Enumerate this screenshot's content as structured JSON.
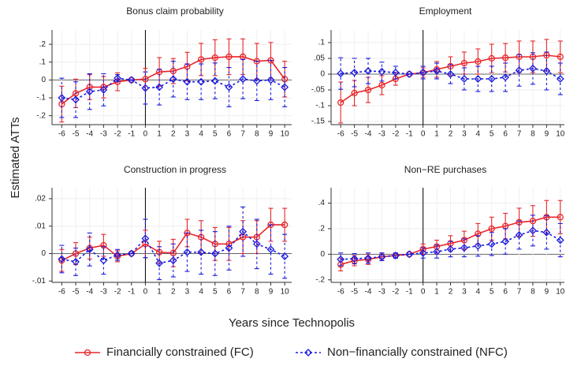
{
  "ylabel": "Estimated ATTs",
  "xlabel": "Years since Technopolis",
  "chart_data": [
    {
      "type": "line",
      "title": "Bonus claim probability",
      "x": [
        -6,
        -5,
        -4,
        -3,
        -2,
        -1,
        0,
        1,
        2,
        3,
        4,
        5,
        6,
        7,
        8,
        9,
        10
      ],
      "xlim": [
        -6.7,
        10.5
      ],
      "xticks": [
        -6,
        -5,
        -4,
        -3,
        -2,
        -1,
        0,
        1,
        2,
        3,
        4,
        5,
        6,
        7,
        8,
        9,
        10
      ],
      "ylim": [
        -0.25,
        0.28
      ],
      "yticks": [
        {
          "value": -0.2,
          "label": "-.2"
        },
        {
          "value": -0.1,
          "label": "-.1"
        },
        0,
        {
          "value": 0.1,
          "label": ".1"
        },
        {
          "value": 0.2,
          "label": ".2"
        }
      ],
      "grid": true,
      "series": [
        {
          "name": "Financially constrained (FC)",
          "color": "#e8262a",
          "marker": "circle",
          "linestyle": "solid",
          "values": [
            -0.135,
            -0.075,
            -0.04,
            -0.04,
            -0.01,
            0,
            0.005,
            0.045,
            0.05,
            0.075,
            0.115,
            0.125,
            0.13,
            0.13,
            0.105,
            0.11,
            0.005
          ],
          "errors": [
            0.1,
            0.08,
            0.07,
            0.06,
            0.05,
            0,
            0.06,
            0.08,
            0.07,
            0.08,
            0.09,
            0.1,
            0.1,
            0.1,
            0.1,
            0.1,
            0.1
          ]
        },
        {
          "name": "Non−financially constrained (NFC)",
          "color": "#1a1ae0",
          "marker": "diamond",
          "linestyle": "dashed",
          "values": [
            -0.1,
            -0.11,
            -0.065,
            -0.055,
            0.01,
            0,
            -0.045,
            -0.04,
            0.005,
            -0.01,
            -0.01,
            -0.005,
            -0.04,
            0.005,
            -0.005,
            0.0,
            -0.04
          ],
          "errors": [
            0.11,
            0.1,
            0.1,
            0.09,
            0.02,
            0,
            0.09,
            0.1,
            0.1,
            0.1,
            0.1,
            0.1,
            0.11,
            0.11,
            0.11,
            0.11,
            0.11
          ]
        }
      ]
    },
    {
      "type": "line",
      "title": "Employment",
      "x": [
        -6,
        -5,
        -4,
        -3,
        -2,
        -1,
        0,
        1,
        2,
        3,
        4,
        5,
        6,
        7,
        8,
        9,
        10
      ],
      "xlim": [
        -6.7,
        10.3
      ],
      "xticks": [
        -6,
        -5,
        -4,
        -3,
        -2,
        -1,
        0,
        1,
        2,
        3,
        4,
        5,
        6,
        7,
        8,
        9,
        10
      ],
      "ylim": [
        -0.16,
        0.14
      ],
      "yticks": [
        {
          "value": -0.15,
          "label": "-.15"
        },
        {
          "value": -0.1,
          "label": "-.1"
        },
        {
          "value": -0.05,
          "label": "-.05"
        },
        0,
        {
          "value": 0.05,
          "label": ".05"
        },
        {
          "value": 0.1,
          "label": ".1"
        }
      ],
      "grid": true,
      "series": [
        {
          "name": "Financially constrained (FC)",
          "color": "#e8262a",
          "marker": "circle",
          "linestyle": "solid",
          "values": [
            -0.09,
            -0.06,
            -0.05,
            -0.035,
            -0.015,
            0,
            0.005,
            0.015,
            0.025,
            0.035,
            0.04,
            0.05,
            0.052,
            0.055,
            0.055,
            0.06,
            0.055
          ],
          "errors": [
            0.065,
            0.04,
            0.04,
            0.03,
            0.02,
            0,
            0.015,
            0.025,
            0.03,
            0.035,
            0.04,
            0.045,
            0.045,
            0.05,
            0.05,
            0.05,
            0.05
          ]
        },
        {
          "name": "Non−financially constrained (NFC)",
          "color": "#1a1ae0",
          "marker": "diamond",
          "linestyle": "dashed",
          "values": [
            0.002,
            0.005,
            0.01,
            0.008,
            0.005,
            0,
            0.005,
            0.01,
            0.0,
            -0.015,
            -0.015,
            -0.015,
            -0.01,
            0.012,
            0.018,
            0.01,
            -0.015
          ],
          "errors": [
            0.05,
            0.045,
            0.04,
            0.03,
            0.02,
            0,
            0.02,
            0.025,
            0.03,
            0.035,
            0.04,
            0.04,
            0.045,
            0.05,
            0.05,
            0.06,
            0.05
          ]
        }
      ]
    },
    {
      "type": "line",
      "title": "Construction in progress",
      "x": [
        -6,
        -5,
        -4,
        -3,
        -2,
        -1,
        0,
        1,
        2,
        3,
        4,
        5,
        6,
        7,
        8,
        9,
        10
      ],
      "xlim": [
        -6.7,
        10.5
      ],
      "xticks": [
        -6,
        -5,
        -4,
        -3,
        -2,
        -1,
        0,
        1,
        2,
        3,
        4,
        5,
        6,
        7,
        8,
        9,
        10
      ],
      "ylim": [
        -0.0105,
        0.024
      ],
      "yticks": [
        {
          "value": -0.01,
          "label": "-.01"
        },
        0,
        {
          "value": 0.01,
          "label": ".01"
        },
        {
          "value": 0.02,
          "label": ".02"
        }
      ],
      "grid": true,
      "series": [
        {
          "name": "Financially constrained (FC)",
          "color": "#e8262a",
          "marker": "circle",
          "linestyle": "solid",
          "values": [
            -0.0025,
            0.0,
            0.002,
            0.003,
            -0.001,
            0,
            0.0035,
            0.0005,
            0.0002,
            0.0075,
            0.006,
            0.0035,
            0.0035,
            0.006,
            0.006,
            0.0105,
            0.0105
          ],
          "errors": [
            0.004,
            0.004,
            0.004,
            0.004,
            0.002,
            0,
            0.005,
            0.004,
            0.005,
            0.005,
            0.006,
            0.006,
            0.006,
            0.006,
            0.006,
            0.006,
            0.006
          ]
        },
        {
          "name": "Non−financially constrained (NFC)",
          "color": "#1a1ae0",
          "marker": "diamond",
          "linestyle": "dashed",
          "values": [
            -0.002,
            -0.003,
            0.0015,
            -0.0025,
            -0.0005,
            0,
            0.0055,
            -0.0035,
            -0.0025,
            0.0005,
            0.0005,
            0.0,
            0.002,
            0.008,
            0.0035,
            0.0015,
            -0.001
          ],
          "errors": [
            0.005,
            0.005,
            0.006,
            0.005,
            0.002,
            0,
            0.007,
            0.006,
            0.006,
            0.007,
            0.008,
            0.008,
            0.008,
            0.009,
            0.009,
            0.009,
            0.008
          ]
        }
      ]
    },
    {
      "type": "line",
      "title": "Non−RE purchases",
      "x": [
        -6,
        -5,
        -4,
        -3,
        -2,
        -1,
        0,
        1,
        2,
        3,
        4,
        5,
        6,
        7,
        8,
        9,
        10
      ],
      "xlim": [
        -6.7,
        10.3
      ],
      "xticks": [
        -6,
        -5,
        -4,
        -3,
        -2,
        -1,
        0,
        1,
        2,
        3,
        4,
        5,
        6,
        7,
        8,
        9,
        10
      ],
      "ylim": [
        -0.22,
        0.52
      ],
      "yticks": [
        {
          "value": -0.2,
          "label": "-.2"
        },
        0,
        {
          "value": 0.2,
          "label": ".2"
        },
        {
          "value": 0.4,
          "label": ".4"
        }
      ],
      "grid": true,
      "series": [
        {
          "name": "Financially constrained (FC)",
          "color": "#e8262a",
          "marker": "circle",
          "linestyle": "solid",
          "values": [
            -0.08,
            -0.05,
            -0.04,
            -0.02,
            -0.01,
            0,
            0.04,
            0.06,
            0.085,
            0.11,
            0.16,
            0.2,
            0.22,
            0.25,
            0.26,
            0.29,
            0.29
          ],
          "errors": [
            0.05,
            0.04,
            0.04,
            0.03,
            0.02,
            0,
            0.04,
            0.05,
            0.06,
            0.07,
            0.08,
            0.09,
            0.1,
            0.11,
            0.12,
            0.13,
            0.13
          ]
        },
        {
          "name": "Non−financially constrained (NFC)",
          "color": "#1a1ae0",
          "marker": "diamond",
          "linestyle": "dashed",
          "values": [
            -0.04,
            -0.035,
            -0.03,
            -0.02,
            -0.01,
            0,
            0.01,
            0.02,
            0.04,
            0.05,
            0.065,
            0.08,
            0.1,
            0.15,
            0.185,
            0.17,
            0.11
          ],
          "errors": [
            0.05,
            0.04,
            0.04,
            0.03,
            0.02,
            0,
            0.04,
            0.05,
            0.06,
            0.07,
            0.08,
            0.09,
            0.1,
            0.11,
            0.12,
            0.13,
            0.13
          ]
        }
      ]
    }
  ]
}
